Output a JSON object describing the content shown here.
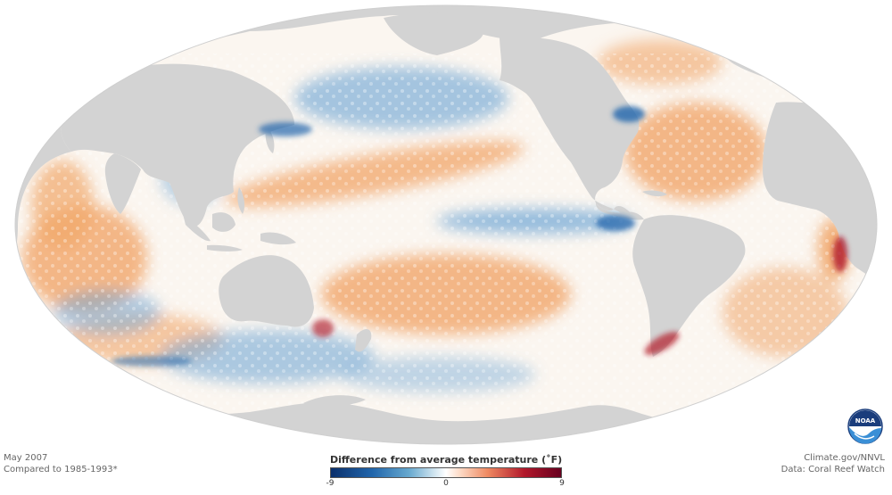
{
  "caption_left": {
    "date": "May 2007",
    "baseline": "Compared to 1985-1993*"
  },
  "caption_right": {
    "source": "Climate.gov/NNVL",
    "data_credit": "Data: Coral Reef Watch"
  },
  "legend": {
    "title": "Difference from average temperature (˚F)",
    "min_label": "-9",
    "mid_label": "0",
    "max_label": "9",
    "colors": [
      "#0a2f6b",
      "#2166ac",
      "#67a9cf",
      "#d1e5f0",
      "#ffffff",
      "#fddbc7",
      "#ef8a62",
      "#b2182b",
      "#67001f"
    ]
  },
  "logo": {
    "text": "NOAA"
  },
  "map": {
    "projection": "Mollweide-like ellipse, Pacific-centered",
    "land_color": "#d3d3d3",
    "ocean_neutral": "#fbf6f0",
    "warm_color": "#f1a66a",
    "cool_color": "#6aa3d4"
  }
}
